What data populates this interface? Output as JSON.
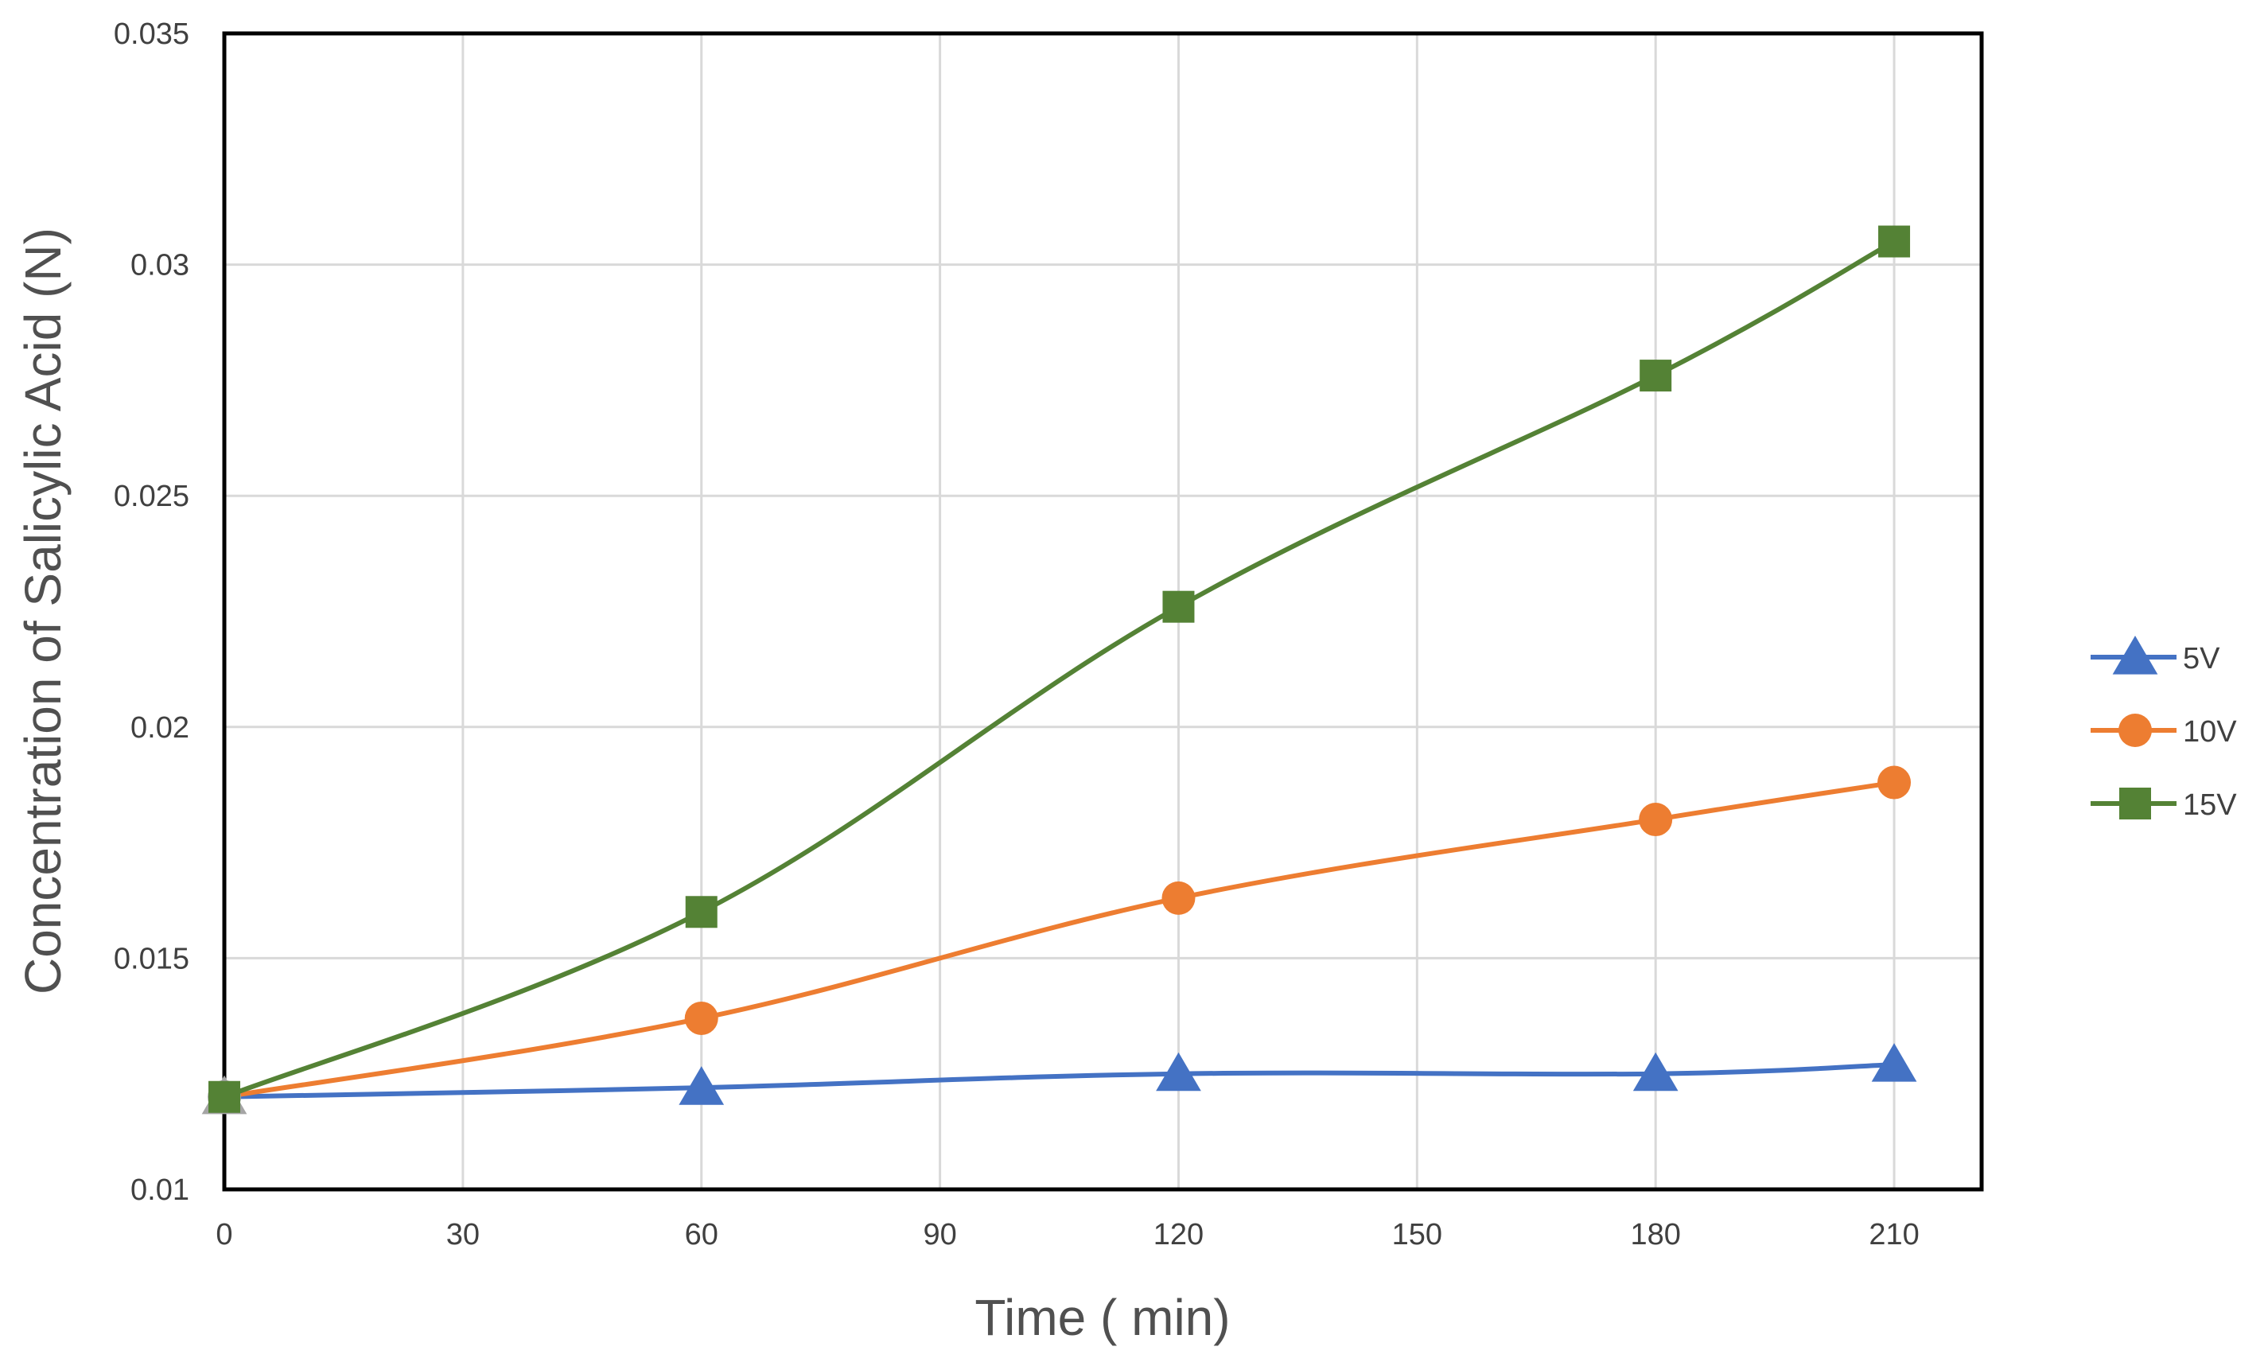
{
  "chart_data": {
    "type": "line",
    "title": "",
    "xlabel": "Time ( min)",
    "ylabel": "Concentration of Salicylic Acid (N)",
    "xlim": [
      0,
      221
    ],
    "ylim": [
      0.01,
      0.035
    ],
    "xticks": [
      0,
      30,
      60,
      90,
      120,
      150,
      180,
      210
    ],
    "yticks": [
      0.01,
      0.015,
      0.02,
      0.025,
      0.03,
      0.035
    ],
    "xtick_labels": [
      "0",
      "30",
      "60",
      "90",
      "120",
      "150",
      "180",
      "210"
    ],
    "ytick_labels": [
      "0.01",
      "0.015",
      "0.02",
      "0.025",
      "0.03",
      "0.035"
    ],
    "grid": true,
    "legend_position": "right",
    "x": [
      0,
      60,
      120,
      180,
      210
    ],
    "series": [
      {
        "name": "5V",
        "marker": "triangle",
        "color": "#4472C4",
        "values": [
          0.012,
          0.0122,
          0.0125,
          0.0125,
          0.0127
        ]
      },
      {
        "name": "10V",
        "marker": "circle",
        "color": "#ED7D31",
        "values": [
          0.012,
          0.0137,
          0.0163,
          0.018,
          0.0188
        ]
      },
      {
        "name": "15V",
        "marker": "square",
        "color": "#548235",
        "values": [
          0.012,
          0.016,
          0.0226,
          0.0276,
          0.0305
        ]
      }
    ]
  }
}
